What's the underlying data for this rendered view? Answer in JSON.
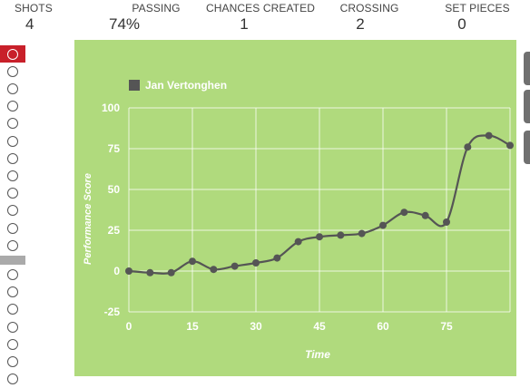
{
  "stats": [
    {
      "label": "SHOTS",
      "value": "4"
    },
    {
      "label": "PASSING",
      "value": "74%"
    },
    {
      "label": "CHANCES CREATED",
      "value": "1"
    },
    {
      "label": "CROSSING",
      "value": "2"
    },
    {
      "label": "SET PIECES",
      "value": "0"
    }
  ],
  "rail": {
    "active_index": 0,
    "groups": [
      12,
      7
    ]
  },
  "chart_data": {
    "type": "line",
    "title": "",
    "xlabel": "Time",
    "ylabel": "Performance Score",
    "xlim": [
      0,
      90
    ],
    "ylim": [
      -25,
      100
    ],
    "x_ticks": [
      0,
      15,
      30,
      45,
      60,
      75
    ],
    "y_ticks": [
      -25,
      0,
      25,
      50,
      75,
      100
    ],
    "grid": true,
    "legend": "top-left",
    "series": [
      {
        "name": "Jan Vertonghen",
        "color": "#555555",
        "x": [
          0,
          5,
          10,
          15,
          20,
          25,
          30,
          35,
          40,
          45,
          50,
          55,
          60,
          65,
          70,
          75,
          80,
          85,
          90
        ],
        "y": [
          0,
          -1,
          -1,
          6,
          1,
          3,
          5,
          8,
          18,
          21,
          22,
          23,
          28,
          36,
          34,
          30,
          76,
          83,
          77
        ]
      }
    ],
    "background": "#b0da7d",
    "text_color": "#ffffff"
  }
}
